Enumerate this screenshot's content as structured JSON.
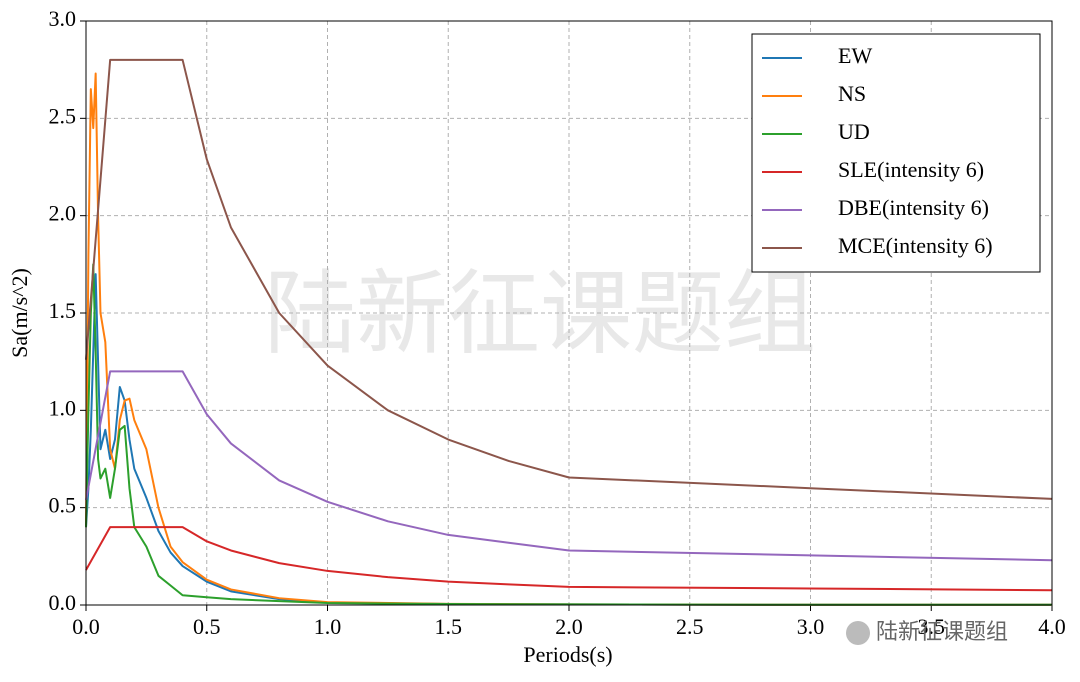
{
  "chart_data": {
    "type": "line",
    "x_label": "Periods(s)",
    "y_label": "Sa(m/s^2)",
    "watermark": "陆新征课题组",
    "credit": "陆新征课题组",
    "xlim": [
      0,
      4
    ],
    "ylim": [
      0,
      3
    ],
    "xticks": [
      {
        "value": 0,
        "label": "0.0"
      },
      {
        "value": 0.5,
        "label": "0.5"
      },
      {
        "value": 1,
        "label": "1.0"
      },
      {
        "value": 1.5,
        "label": "1.5"
      },
      {
        "value": 2,
        "label": "2.0"
      },
      {
        "value": 2.5,
        "label": "2.5"
      },
      {
        "value": 3,
        "label": "3.0"
      },
      {
        "value": 3.5,
        "label": "3.5"
      },
      {
        "value": 4,
        "label": "4.0"
      }
    ],
    "yticks": [
      {
        "value": 0,
        "label": "0.0"
      },
      {
        "value": 0.5,
        "label": "0.5"
      },
      {
        "value": 1,
        "label": "1.0"
      },
      {
        "value": 1.5,
        "label": "1.5"
      },
      {
        "value": 2,
        "label": "2.0"
      },
      {
        "value": 2.5,
        "label": "2.5"
      },
      {
        "value": 3,
        "label": "3.0"
      }
    ],
    "grid": true,
    "legend": "upper right",
    "series": [
      {
        "name": "EW",
        "color": "#1f77b4",
        "x": [
          0,
          0.01,
          0.02,
          0.03,
          0.04,
          0.05,
          0.06,
          0.08,
          0.1,
          0.12,
          0.14,
          0.16,
          0.18,
          0.2,
          0.25,
          0.3,
          0.35,
          0.4,
          0.5,
          0.6,
          0.8,
          1,
          1.5,
          2,
          3,
          4
        ],
        "values": [
          0.4,
          0.6,
          0.9,
          1.3,
          1.7,
          1.25,
          0.8,
          0.9,
          0.75,
          0.85,
          1.12,
          1.05,
          0.85,
          0.7,
          0.55,
          0.38,
          0.27,
          0.2,
          0.12,
          0.07,
          0.03,
          0.012,
          0.005,
          0.003,
          0.001,
          0.001
        ]
      },
      {
        "name": "NS",
        "color": "#ff7f0e",
        "x": [
          0,
          0.01,
          0.02,
          0.03,
          0.04,
          0.05,
          0.06,
          0.08,
          0.1,
          0.12,
          0.14,
          0.16,
          0.18,
          0.2,
          0.25,
          0.3,
          0.35,
          0.4,
          0.5,
          0.6,
          0.8,
          1,
          1.5,
          2,
          3,
          4
        ],
        "values": [
          0.4,
          1.8,
          2.65,
          2.45,
          2.73,
          2.0,
          1.5,
          1.35,
          0.8,
          0.7,
          0.95,
          1.05,
          1.06,
          0.95,
          0.8,
          0.5,
          0.3,
          0.22,
          0.13,
          0.08,
          0.035,
          0.015,
          0.006,
          0.003,
          0.001,
          0.001
        ]
      },
      {
        "name": "UD",
        "color": "#2ca02c",
        "x": [
          0,
          0.01,
          0.02,
          0.03,
          0.04,
          0.05,
          0.06,
          0.08,
          0.1,
          0.12,
          0.14,
          0.16,
          0.18,
          0.2,
          0.25,
          0.3,
          0.35,
          0.4,
          0.5,
          0.6,
          0.8,
          1,
          1.5,
          2,
          3,
          4
        ],
        "values": [
          0.4,
          1.0,
          1.5,
          1.75,
          1.3,
          0.75,
          0.65,
          0.7,
          0.55,
          0.7,
          0.9,
          0.92,
          0.6,
          0.4,
          0.3,
          0.15,
          0.1,
          0.05,
          0.04,
          0.03,
          0.02,
          0.01,
          0.005,
          0.003,
          0.001,
          0.001
        ]
      },
      {
        "name": "SLE(intensity 6)",
        "color": "#d62728",
        "x": [
          0,
          0.1,
          0.4,
          0.5,
          0.6,
          0.8,
          1,
          1.25,
          1.5,
          1.75,
          2,
          3,
          4
        ],
        "values": [
          0.18,
          0.4,
          0.4,
          0.327,
          0.28,
          0.215,
          0.175,
          0.143,
          0.12,
          0.106,
          0.093,
          0.085,
          0.076
        ]
      },
      {
        "name": "DBE(intensity 6)",
        "color": "#9467bd",
        "x": [
          0,
          0.1,
          0.4,
          0.5,
          0.6,
          0.8,
          1,
          1.25,
          1.5,
          1.75,
          2,
          3,
          4
        ],
        "values": [
          0.54,
          1.2,
          1.2,
          0.98,
          0.83,
          0.64,
          0.53,
          0.43,
          0.36,
          0.32,
          0.28,
          0.255,
          0.23
        ]
      },
      {
        "name": "MCE(intensity 6)",
        "color": "#8c564b",
        "x": [
          0,
          0.1,
          0.4,
          0.5,
          0.6,
          0.8,
          1,
          1.25,
          1.5,
          1.75,
          2,
          3,
          4
        ],
        "values": [
          1.26,
          2.8,
          2.8,
          2.29,
          1.94,
          1.5,
          1.23,
          1.0,
          0.85,
          0.74,
          0.655,
          0.6,
          0.545
        ]
      }
    ]
  }
}
